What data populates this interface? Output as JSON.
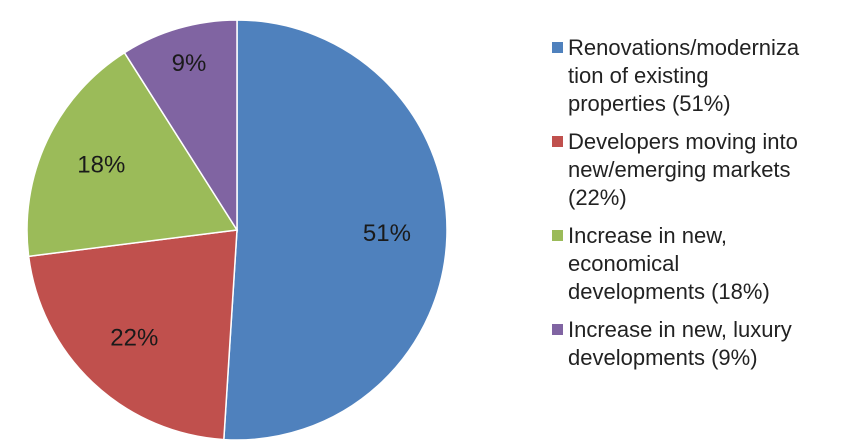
{
  "chart_data": {
    "type": "pie",
    "title": "",
    "legend_position": "right",
    "slices": [
      {
        "label": "Renovations/modernization of existing properties (51%)",
        "legend_lines": [
          "Renovations/moderniza",
          "tion of existing",
          "properties (51%)"
        ],
        "value": 51,
        "value_label": "51%",
        "color": "#4f81bd"
      },
      {
        "label": "Developers moving into new/emerging markets (22%)",
        "legend_lines": [
          "Developers moving into",
          "new/emerging markets",
          "(22%)"
        ],
        "value": 22,
        "value_label": "22%",
        "color": "#c0504d"
      },
      {
        "label": "Increase in new, economical developments (18%)",
        "legend_lines": [
          "Increase in new,",
          "economical",
          "developments (18%)"
        ],
        "value": 18,
        "value_label": "18%",
        "color": "#9bbb59"
      },
      {
        "label": "Increase in new, luxury developments (9%)",
        "legend_lines": [
          "Increase in new, luxury",
          "developments (9%)"
        ],
        "value": 9,
        "value_label": "9%",
        "color": "#8064a2"
      }
    ]
  }
}
